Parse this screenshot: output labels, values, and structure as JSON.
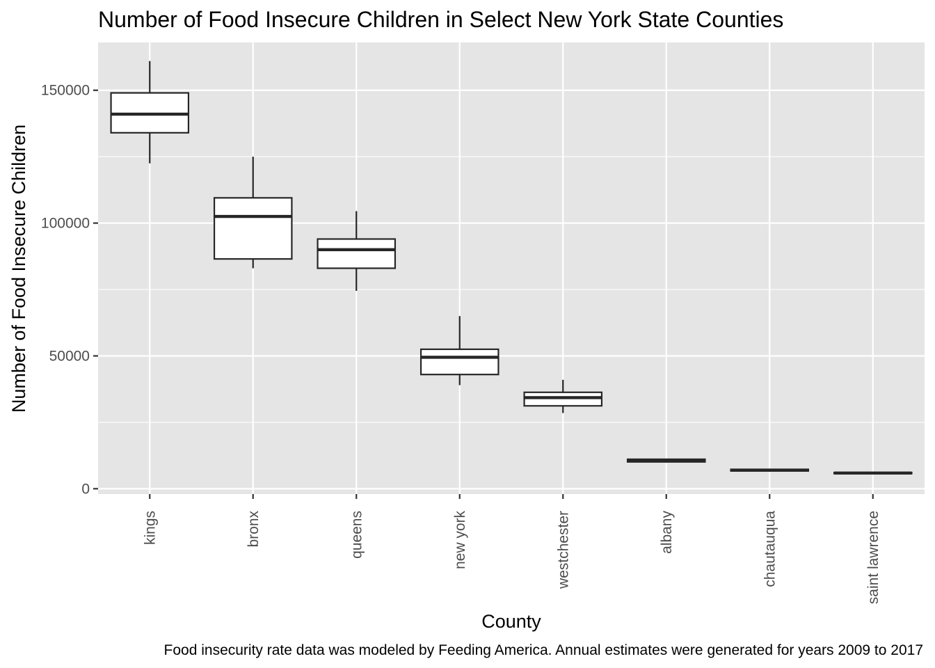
{
  "chart_data": {
    "type": "boxplot",
    "title": "Number of Food Insecure Children in Select New York State Counties",
    "xlabel": "County",
    "ylabel": "Number of Food Insecure Children",
    "caption": "Food insecurity rate data was modeled by Feeding America. Annual estimates were generated for years 2009 to 2017",
    "ylim": [
      -2000,
      168000
    ],
    "y_ticks": [
      0,
      50000,
      100000,
      150000
    ],
    "y_tick_labels": [
      "0",
      "50000",
      "100000",
      "150000"
    ],
    "grid": true,
    "legend": "none",
    "categories": [
      "kings",
      "bronx",
      "queens",
      "new york",
      "westchester",
      "albany",
      "chautauqua",
      "saint lawrence"
    ],
    "boxes": [
      {
        "category": "kings",
        "min": 122500,
        "q1": 134000,
        "median": 141000,
        "q3": 149000,
        "max": 161000
      },
      {
        "category": "bronx",
        "min": 83000,
        "q1": 86500,
        "median": 102500,
        "q3": 109500,
        "max": 125000
      },
      {
        "category": "queens",
        "min": 74500,
        "q1": 83000,
        "median": 90000,
        "q3": 94000,
        "max": 104500
      },
      {
        "category": "new york",
        "min": 39000,
        "q1": 43000,
        "median": 49500,
        "q3": 52500,
        "max": 65000
      },
      {
        "category": "westchester",
        "min": 28500,
        "q1": 31200,
        "median": 34300,
        "q3": 36300,
        "max": 41000
      },
      {
        "category": "albany",
        "min": 9800,
        "q1": 10100,
        "median": 10600,
        "q3": 11100,
        "max": 11300
      },
      {
        "category": "chautauqua",
        "min": 6400,
        "q1": 6700,
        "median": 7000,
        "q3": 7300,
        "max": 7500
      },
      {
        "category": "saint lawrence",
        "min": 5500,
        "q1": 5700,
        "median": 5900,
        "q3": 6100,
        "max": 6300
      }
    ],
    "colors": {
      "panel_background": "#e5e5e5",
      "grid": "#ffffff",
      "box_fill": "#ffffff",
      "box_stroke": "#262626",
      "axis_text": "#4d4d4d",
      "tick": "#333333"
    }
  }
}
